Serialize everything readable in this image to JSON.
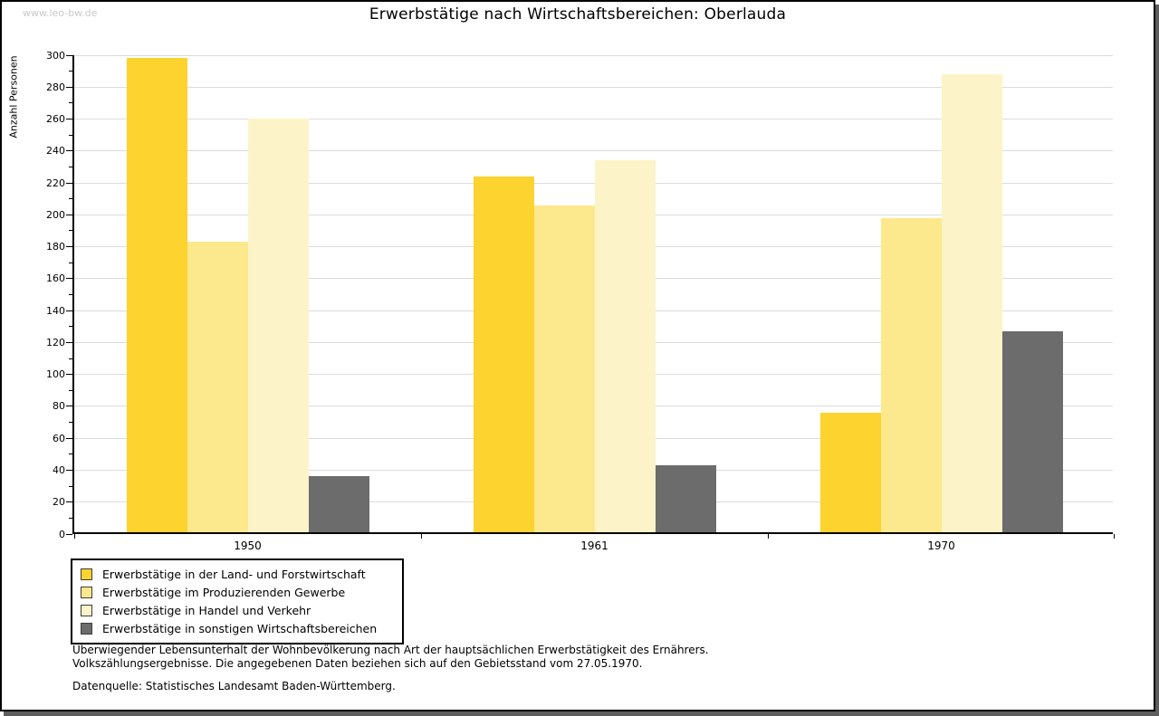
{
  "watermark": "www.leo-bw.de",
  "title": "Erwerbstätige nach Wirtschaftsbereichen: Oberlauda",
  "chart_data": {
    "type": "bar",
    "title": "Erwerbstätige nach Wirtschaftsbereichen: Oberlauda",
    "xlabel": "",
    "ylabel": "Anzahl Personen",
    "categories": [
      "1950",
      "1961",
      "1970"
    ],
    "series": [
      {
        "name": "Erwerbstätige in der Land- und Forstwirtschaft",
        "color": "#FCD32F",
        "values": [
          297,
          223,
          75
        ]
      },
      {
        "name": "Erwerbstätige im Produzierenden Gewerbe",
        "color": "#FCE88D",
        "values": [
          182,
          205,
          197
        ]
      },
      {
        "name": "Erwerbstätige in Handel und Verkehr",
        "color": "#FCF4C8",
        "values": [
          259,
          233,
          287
        ]
      },
      {
        "name": "Erwerbstätige in sonstigen Wirtschaftsbereichen",
        "color": "#6C6C6C",
        "values": [
          35,
          42,
          126
        ]
      }
    ],
    "ylim": [
      0,
      300
    ],
    "ytick_step": 20,
    "yminor_step": 10,
    "grid": true,
    "legend_position": "bottom-left"
  },
  "notes": {
    "line1": "Überwiegender Lebensunterhalt der Wohnbevölkerung nach Art der hauptsächlichen Erwerbstätigkeit des Ernährers.",
    "line2": "Volkszählungsergebnisse. Die angegebenen Daten beziehen sich auf den Gebietsstand vom 27.05.1970.",
    "source": "Datenquelle: Statistisches Landesamt Baden-Württemberg."
  }
}
